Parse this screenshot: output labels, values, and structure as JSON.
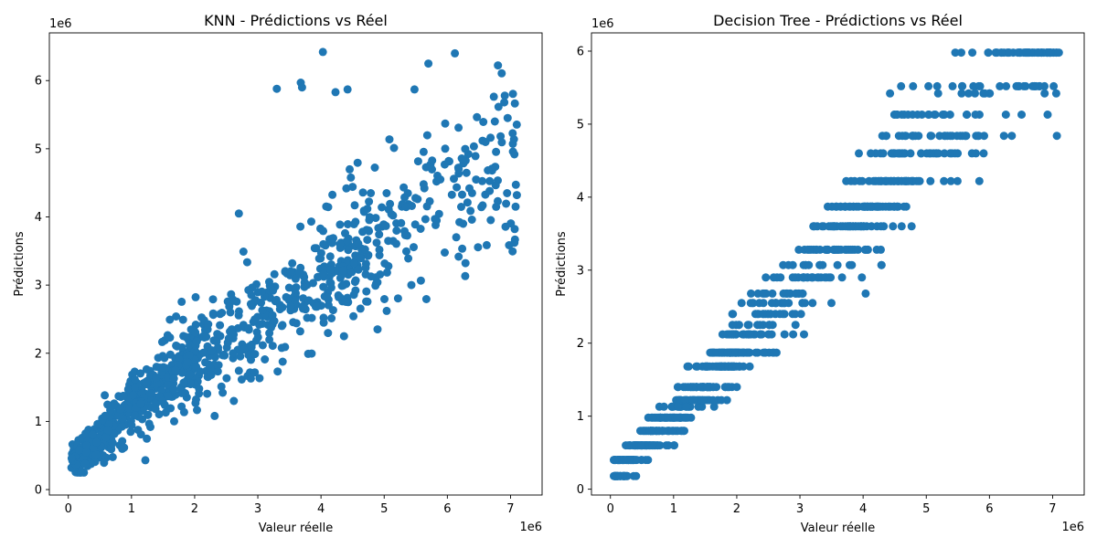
{
  "chart_data": [
    {
      "type": "scatter",
      "title": "KNN - Prédictions vs Réel",
      "xlabel": "Valeur réelle",
      "ylabel": "Prédictions",
      "x_offset_label": "1e6",
      "y_offset_label": "1e6",
      "xlim": [
        -0.3,
        7.5
      ],
      "ylim": [
        -0.08,
        6.7
      ],
      "xticks": [
        0,
        1,
        2,
        3,
        4,
        5,
        6,
        7
      ],
      "yticks": [
        0,
        1,
        2,
        3,
        4,
        5,
        6
      ],
      "grid": false,
      "marker_color": "#1f77b4",
      "generator": {
        "seed": 11,
        "n": 1000,
        "model": "knn"
      },
      "points": [
        [
          4.03,
          6.42
        ],
        [
          6.12,
          6.4
        ],
        [
          5.7,
          6.25
        ],
        [
          3.68,
          5.97
        ],
        [
          3.3,
          5.88
        ],
        [
          3.7,
          5.9
        ],
        [
          4.42,
          5.87
        ],
        [
          5.48,
          5.87
        ],
        [
          6.91,
          5.78
        ],
        [
          4.23,
          5.83
        ],
        [
          1.22,
          0.43
        ],
        [
          0.2,
          0.25
        ],
        [
          2.62,
          1.3
        ],
        [
          7.08,
          4.15
        ],
        [
          7.1,
          4.32
        ],
        [
          6.25,
          3.9
        ],
        [
          2.7,
          4.05
        ]
      ]
    },
    {
      "type": "scatter",
      "title": "Decision Tree - Prédictions vs Réel",
      "xlabel": "Valeur réelle",
      "ylabel": "Prédictions",
      "x_offset_label": "1e6",
      "y_offset_label": "1e6",
      "xlim": [
        -0.3,
        7.5
      ],
      "ylim": [
        -0.08,
        6.25
      ],
      "xticks": [
        0,
        1,
        2,
        3,
        4,
        5,
        6,
        7
      ],
      "yticks": [
        0,
        1,
        2,
        3,
        4,
        5,
        6
      ],
      "grid": false,
      "marker_color": "#1f77b4",
      "generator": {
        "seed": 23,
        "n": 1000,
        "model": "tree"
      },
      "tree_levels": [
        0.18,
        0.4,
        0.6,
        0.8,
        0.98,
        1.13,
        1.22,
        1.4,
        1.68,
        1.87,
        2.12,
        2.25,
        2.4,
        2.55,
        2.68,
        2.9,
        3.07,
        3.28,
        3.6,
        3.87,
        4.22,
        4.6,
        4.84,
        5.13,
        5.42,
        5.52,
        5.98
      ],
      "points": []
    }
  ]
}
